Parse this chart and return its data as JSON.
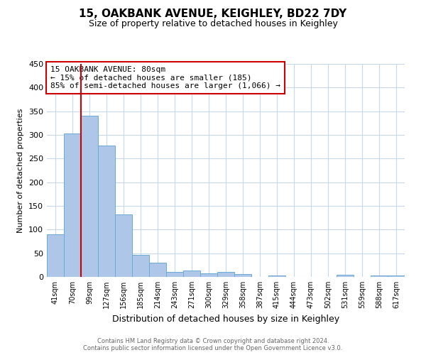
{
  "title_line1": "15, OAKBANK AVENUE, KEIGHLEY, BD22 7DY",
  "title_line2": "Size of property relative to detached houses in Keighley",
  "xlabel": "Distribution of detached houses by size in Keighley",
  "ylabel": "Number of detached properties",
  "categories": [
    "41sqm",
    "70sqm",
    "99sqm",
    "127sqm",
    "156sqm",
    "185sqm",
    "214sqm",
    "243sqm",
    "271sqm",
    "300sqm",
    "329sqm",
    "358sqm",
    "387sqm",
    "415sqm",
    "444sqm",
    "473sqm",
    "502sqm",
    "531sqm",
    "559sqm",
    "588sqm",
    "617sqm"
  ],
  "values": [
    90,
    303,
    340,
    278,
    132,
    47,
    30,
    10,
    13,
    7,
    10,
    6,
    0,
    3,
    0,
    0,
    0,
    5,
    0,
    3,
    3
  ],
  "bar_color": "#aec6e8",
  "bar_edge_color": "#6aaad4",
  "bar_width": 1.0,
  "vline_color": "#cc0000",
  "vline_x": 1.5,
  "ylim": [
    0,
    450
  ],
  "yticks": [
    0,
    50,
    100,
    150,
    200,
    250,
    300,
    350,
    400,
    450
  ],
  "grid_color": "#c8d8e8",
  "background_color": "#ffffff",
  "annotation_text": "15 OAKBANK AVENUE: 80sqm\n← 15% of detached houses are smaller (185)\n85% of semi-detached houses are larger (1,066) →",
  "annotation_box_color": "#ffffff",
  "annotation_box_edge_color": "#cc0000",
  "footer_line1": "Contains HM Land Registry data © Crown copyright and database right 2024.",
  "footer_line2": "Contains public sector information licensed under the Open Government Licence v3.0.",
  "footer_color": "#666666",
  "title_fontsize": 11,
  "subtitle_fontsize": 9,
  "ylabel_fontsize": 8,
  "xlabel_fontsize": 9,
  "tick_fontsize": 7,
  "ytick_fontsize": 8,
  "ann_fontsize": 8,
  "footer_fontsize": 6
}
